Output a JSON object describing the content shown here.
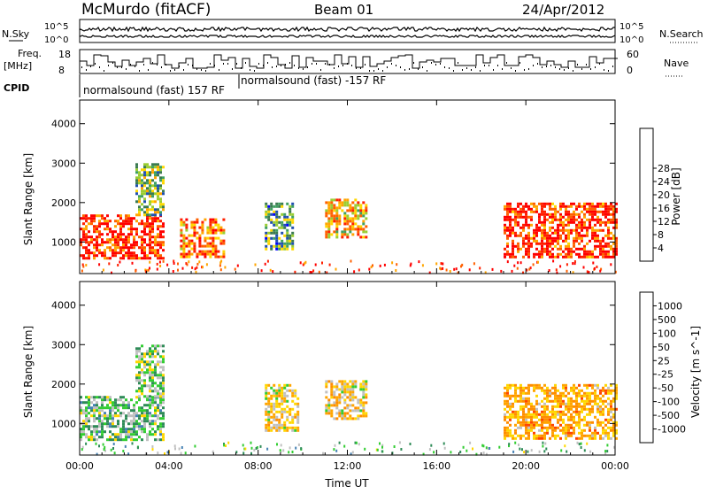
{
  "header": {
    "station": "McMurdo (fitACF)",
    "beam": "Beam 01",
    "date": "24/Apr/2012"
  },
  "strips": {
    "nsky_label": "N.Sky",
    "nsearch_label": "N.Search",
    "freq_label_line1": "Freq.",
    "freq_label_line2": "[MHz]",
    "nave_label": "Nave",
    "cpid_label": "CPID",
    "cpid_text_1": "normalsound (fast) 157 RF",
    "cpid_text_2": "normalsound (fast) -157 RF",
    "noise_ticks_left": [
      "10^5",
      "10^0"
    ],
    "noise_ticks_right": [
      "10^5",
      "10^0"
    ],
    "freq_ticks": [
      "18",
      "8"
    ],
    "nave_ticks": [
      "60",
      "0"
    ]
  },
  "colors": {
    "power_scale": [
      "#0000ff",
      "#2050b0",
      "#3a7a50",
      "#3fa060",
      "#9acd32",
      "#ffd700",
      "#ffa500",
      "#ff6000",
      "#ff2000",
      "#ff0000"
    ],
    "velocity_scale": [
      "#ff0000",
      "#ff4500",
      "#ff8c00",
      "#ffa500",
      "#ffd700",
      "#c0c0c0",
      "#32cd32",
      "#2e8b57",
      "#4682b4",
      "#0000cd"
    ]
  },
  "chart_data": [
    {
      "type": "heatmap",
      "name": "power",
      "xlabel": "",
      "ylabel": "Slant Range [km]",
      "x_ticks": [
        "00:00",
        "04:00",
        "08:00",
        "12:00",
        "16:00",
        "20:00",
        "00:00"
      ],
      "y_ticks": [
        1000,
        2000,
        3000,
        4000
      ],
      "ylim": [
        200,
        4600
      ],
      "xlim_hours": [
        0,
        24
      ],
      "colorbar_label": "Power [dB]",
      "colorbar_ticks": [
        4,
        8,
        12,
        16,
        20,
        24,
        28
      ],
      "colorbar_range": [
        0,
        30
      ],
      "regions": [
        {
          "x": [
            0.0,
            3.8
          ],
          "y": [
            600,
            1700
          ],
          "value": 26
        },
        {
          "x": [
            2.5,
            3.8
          ],
          "y": [
            1700,
            3000
          ],
          "value": 12
        },
        {
          "x": [
            4.5,
            6.5
          ],
          "y": [
            600,
            1600
          ],
          "value": 22
        },
        {
          "x": [
            8.3,
            9.5
          ],
          "y": [
            800,
            2000
          ],
          "value": 10
        },
        {
          "x": [
            11.0,
            12.8
          ],
          "y": [
            1100,
            2100
          ],
          "value": 18
        },
        {
          "x": [
            19.0,
            24.0
          ],
          "y": [
            600,
            2000
          ],
          "value": 25
        }
      ]
    },
    {
      "type": "heatmap",
      "name": "velocity",
      "xlabel": "Time UT",
      "ylabel": "Slant Range [km]",
      "x_ticks": [
        "00:00",
        "04:00",
        "08:00",
        "12:00",
        "16:00",
        "20:00",
        "00:00"
      ],
      "y_ticks": [
        1000,
        2000,
        3000,
        4000
      ],
      "ylim": [
        200,
        4600
      ],
      "xlim_hours": [
        0,
        24
      ],
      "colorbar_label": "Velocity [m s^-1]",
      "colorbar_ticks": [
        "1000",
        "500",
        "100",
        "50",
        "25",
        "-25",
        "-50",
        "-100",
        "-500",
        "-1000"
      ],
      "regions": [
        {
          "x": [
            0.0,
            3.8
          ],
          "y": [
            600,
            1700
          ],
          "value": 300
        },
        {
          "x": [
            2.5,
            3.8
          ],
          "y": [
            1700,
            3000
          ],
          "value": 200
        },
        {
          "x": [
            8.3,
            9.8
          ],
          "y": [
            800,
            2000
          ],
          "value": -100
        },
        {
          "x": [
            11.0,
            12.8
          ],
          "y": [
            1100,
            2100
          ],
          "value": -120
        },
        {
          "x": [
            19.0,
            24.0
          ],
          "y": [
            600,
            2000
          ],
          "value": -300
        }
      ]
    }
  ]
}
